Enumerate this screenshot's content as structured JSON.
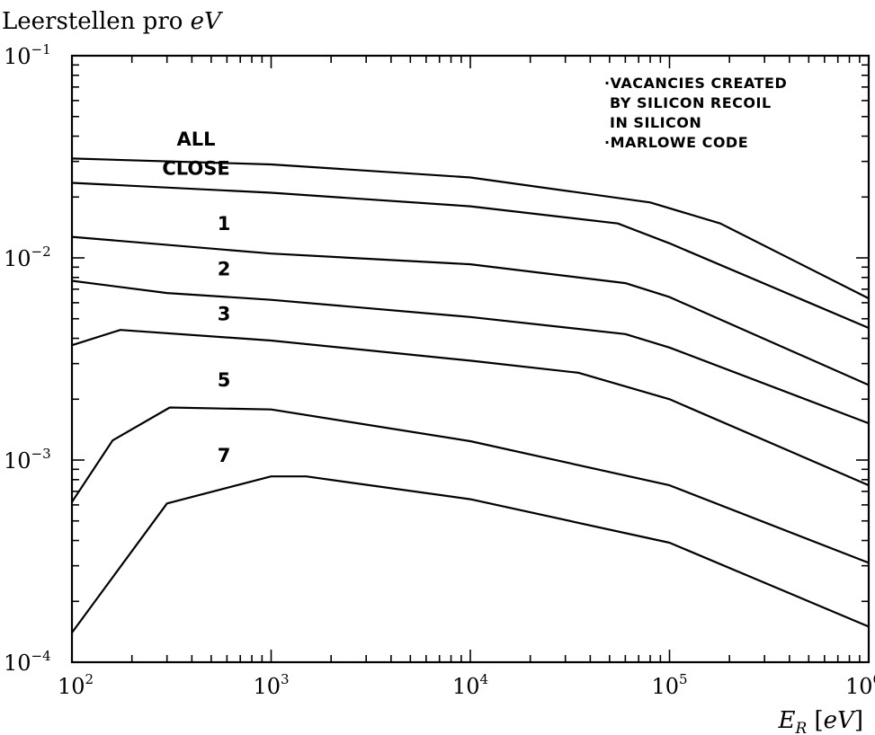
{
  "chart_data": {
    "type": "line",
    "title": "",
    "ylabel": "Leerstellen pro eV",
    "xlabel": "E_R [eV]",
    "xscale": "log",
    "yscale": "log",
    "xlim": [
      100,
      1000000
    ],
    "ylim": [
      0.0001,
      0.1
    ],
    "grid": false,
    "x_tick_labels": [
      {
        "value": 100,
        "base": "10",
        "exp": "2"
      },
      {
        "value": 1000,
        "base": "10",
        "exp": "3"
      },
      {
        "value": 10000,
        "base": "10",
        "exp": "4"
      },
      {
        "value": 100000,
        "base": "10",
        "exp": "5"
      },
      {
        "value": 1000000,
        "base": "10",
        "exp": "6"
      }
    ],
    "y_tick_labels": [
      {
        "value": 0.1,
        "base": "10",
        "exp": "−1"
      },
      {
        "value": 0.01,
        "base": "10",
        "exp": "−2"
      },
      {
        "value": 0.001,
        "base": "10",
        "exp": "−3"
      },
      {
        "value": 0.0001,
        "base": "10",
        "exp": "−4"
      }
    ],
    "annotations": [
      "·VACANCIES CREATED",
      "BY SILICON RECOIL",
      "IN SILICON",
      "·MARLOWE CODE"
    ],
    "series": [
      {
        "name": "ALL",
        "label_at": [
          420,
          0.036
        ],
        "points": [
          [
            100,
            0.031
          ],
          [
            1000,
            0.029
          ],
          [
            10000,
            0.025
          ],
          [
            80000,
            0.0188
          ],
          [
            180000,
            0.0148
          ],
          [
            1000000,
            0.0063
          ]
        ]
      },
      {
        "name": "CLOSE",
        "label_at": [
          420,
          0.0258
        ],
        "points": [
          [
            100,
            0.0235
          ],
          [
            1000,
            0.021
          ],
          [
            10000,
            0.018
          ],
          [
            55000,
            0.0148
          ],
          [
            100000,
            0.0118
          ],
          [
            1000000,
            0.0045
          ]
        ]
      },
      {
        "name": "1",
        "label_at": [
          580,
          0.0137
        ],
        "points": [
          [
            100,
            0.0127
          ],
          [
            1000,
            0.0105
          ],
          [
            10000,
            0.0093
          ],
          [
            60000,
            0.0075
          ],
          [
            100000,
            0.0064
          ],
          [
            1000000,
            0.00235
          ]
        ]
      },
      {
        "name": "2",
        "label_at": [
          580,
          0.0082
        ],
        "points": [
          [
            100,
            0.0077
          ],
          [
            300,
            0.0067
          ],
          [
            1000,
            0.0062
          ],
          [
            10000,
            0.0051
          ],
          [
            60000,
            0.0042
          ],
          [
            100000,
            0.0036
          ],
          [
            1000000,
            0.00152
          ]
        ]
      },
      {
        "name": "3",
        "label_at": [
          580,
          0.0049
        ],
        "points": [
          [
            100,
            0.0037
          ],
          [
            175,
            0.0044
          ],
          [
            1000,
            0.0039
          ],
          [
            10000,
            0.0031
          ],
          [
            35000,
            0.0027
          ],
          [
            100000,
            0.002
          ],
          [
            1000000,
            0.00075
          ]
        ]
      },
      {
        "name": "5",
        "label_at": [
          580,
          0.00232
        ],
        "points": [
          [
            100,
            0.00062
          ],
          [
            160,
            0.00125
          ],
          [
            310,
            0.00182
          ],
          [
            1000,
            0.00178
          ],
          [
            10000,
            0.00124
          ],
          [
            100000,
            0.00075
          ],
          [
            1000000,
            0.00031
          ]
        ]
      },
      {
        "name": "7",
        "label_at": [
          580,
          0.00098
        ],
        "points": [
          [
            100,
            0.00014
          ],
          [
            300,
            0.00061
          ],
          [
            1000,
            0.00083
          ],
          [
            1500,
            0.00083
          ],
          [
            10000,
            0.00064
          ],
          [
            100000,
            0.00039
          ],
          [
            1000000,
            0.00015
          ]
        ]
      }
    ]
  }
}
